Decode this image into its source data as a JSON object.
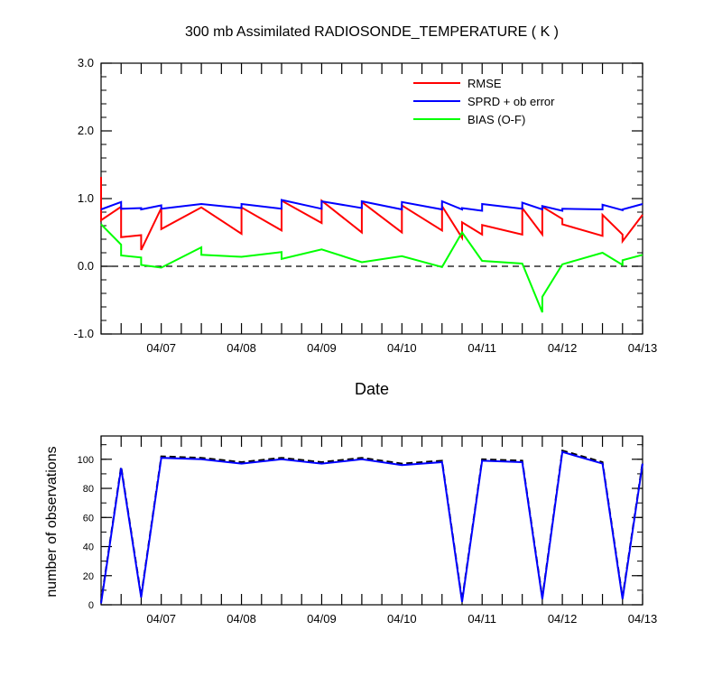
{
  "chart_data": [
    {
      "type": "line",
      "title": "300 mb Assimilated RADIOSONDE_TEMPERATURE ( K )",
      "xlabel": "Date",
      "ylabel": "",
      "xlim": [
        0,
        6.75
      ],
      "ylim": [
        -1.0,
        3.0
      ],
      "x_tick_positions": [
        0.75,
        1.75,
        2.75,
        3.75,
        4.75,
        5.75,
        6.75
      ],
      "x_tick_labels": [
        "04/07",
        "04/08",
        "04/09",
        "04/10",
        "04/11",
        "04/12",
        "04/13"
      ],
      "y_ticks": [
        -1.0,
        0.0,
        1.0,
        2.0,
        3.0
      ],
      "y_tick_labels": [
        "-1.0",
        "0.0",
        "1.0",
        "2.0",
        "3.0"
      ],
      "reference_line": {
        "y": 0.0,
        "style": "dashed",
        "color": "#000000"
      },
      "legend_placement": "top-right",
      "series": [
        {
          "name": "RMSE",
          "color": "#ff0000",
          "x": [
            0,
            0,
            0.25,
            0.25,
            0.5,
            0.5,
            0.75,
            0.75,
            1.25,
            1.75,
            1.75,
            2.25,
            2.25,
            2.75,
            2.75,
            3.25,
            3.25,
            3.75,
            3.75,
            4.25,
            4.25,
            4.5,
            4.5,
            4.75,
            4.75,
            5.25,
            5.25,
            5.5,
            5.5,
            5.75,
            5.75,
            6.25,
            6.25,
            6.5,
            6.5,
            6.75
          ],
          "y": [
            1.32,
            0.68,
            0.88,
            0.43,
            0.46,
            0.24,
            0.86,
            0.55,
            0.87,
            0.48,
            0.87,
            0.53,
            0.97,
            0.64,
            0.97,
            0.5,
            0.95,
            0.5,
            0.9,
            0.53,
            0.89,
            0.42,
            0.65,
            0.47,
            0.61,
            0.47,
            0.86,
            0.47,
            0.88,
            0.7,
            0.62,
            0.45,
            0.76,
            0.47,
            0.37,
            0.76
          ]
        },
        {
          "name": "SPRD + ob error",
          "color": "#0000ff",
          "x": [
            0,
            0.25,
            0.25,
            0.5,
            0.5,
            0.75,
            0.75,
            1.25,
            1.75,
            1.75,
            2.25,
            2.25,
            2.75,
            2.75,
            3.25,
            3.25,
            3.75,
            3.75,
            4.25,
            4.25,
            4.5,
            4.5,
            4.75,
            4.75,
            5.25,
            5.25,
            5.5,
            5.5,
            5.75,
            5.75,
            6.25,
            6.25,
            6.5,
            6.5,
            6.75
          ],
          "y": [
            0.84,
            0.95,
            0.85,
            0.86,
            0.84,
            0.9,
            0.85,
            0.92,
            0.86,
            0.92,
            0.85,
            0.98,
            0.85,
            0.96,
            0.86,
            0.96,
            0.84,
            0.95,
            0.84,
            0.96,
            0.84,
            0.86,
            0.82,
            0.92,
            0.85,
            0.94,
            0.84,
            0.89,
            0.82,
            0.85,
            0.84,
            0.91,
            0.83,
            0.84,
            0.92
          ]
        },
        {
          "name": "BIAS (O-F)",
          "color": "#00ff00",
          "x": [
            0,
            0.25,
            0.25,
            0.5,
            0.5,
            0.75,
            1.25,
            1.25,
            1.75,
            2.25,
            2.25,
            2.75,
            3.25,
            3.75,
            4.25,
            4.5,
            4.75,
            5.25,
            5.5,
            5.5,
            5.75,
            6.25,
            6.5,
            6.5,
            6.75
          ],
          "y": [
            0.62,
            0.32,
            0.16,
            0.13,
            0.02,
            -0.02,
            0.28,
            0.17,
            0.14,
            0.21,
            0.11,
            0.25,
            0.06,
            0.15,
            -0.01,
            0.5,
            0.08,
            0.04,
            -0.68,
            -0.45,
            0.03,
            0.2,
            0.02,
            0.09,
            0.17
          ]
        }
      ]
    },
    {
      "type": "line",
      "title": "",
      "xlabel": "",
      "ylabel": "number of observations",
      "xlim": [
        0,
        6.75
      ],
      "ylim": [
        0,
        116
      ],
      "x_tick_positions": [
        0.75,
        1.75,
        2.75,
        3.75,
        4.75,
        5.75,
        6.75
      ],
      "x_tick_labels": [
        "04/07",
        "04/08",
        "04/09",
        "04/10",
        "04/11",
        "04/12",
        "04/13"
      ],
      "y_ticks": [
        0,
        20,
        40,
        60,
        80,
        100
      ],
      "y_tick_labels": [
        "0",
        "20",
        "40",
        "60",
        "80",
        "100"
      ],
      "series": [
        {
          "color": "#000000",
          "style": "dashed",
          "x": [
            0,
            0.25,
            0.5,
            0.75,
            1.25,
            1.75,
            2.25,
            2.75,
            3.25,
            3.75,
            4.25,
            4.5,
            4.75,
            5.25,
            5.5,
            5.75,
            6.25,
            6.5,
            6.75
          ],
          "y": [
            2,
            95,
            6,
            102,
            101,
            98,
            101,
            98,
            101,
            97,
            99,
            3,
            100,
            99,
            5,
            106,
            98,
            5,
            98
          ]
        },
        {
          "color": "#0000ff",
          "style": "solid",
          "x": [
            0,
            0.25,
            0.5,
            0.75,
            1.25,
            1.75,
            2.25,
            2.75,
            3.25,
            3.75,
            4.25,
            4.5,
            4.75,
            5.25,
            5.5,
            5.75,
            6.25,
            6.5,
            6.75
          ],
          "y": [
            1,
            94,
            5,
            101,
            100,
            97,
            100,
            97,
            100,
            96,
            98,
            2,
            99,
            98,
            4,
            105,
            97,
            4,
            97
          ]
        }
      ]
    }
  ]
}
